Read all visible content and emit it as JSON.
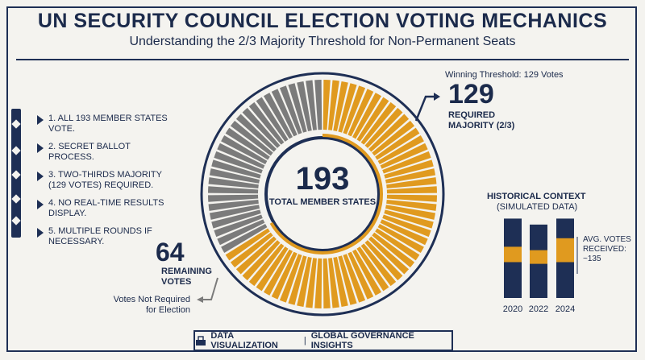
{
  "header": {
    "title": "UN SECURITY COUNCIL ELECTION VOTING MECHANICS",
    "subtitle": "Understanding the 2/3 Majority Threshold for Non-Permanent Seats"
  },
  "steps": [
    "1. All 193 member states vote.",
    "2. Secret ballot process.",
    "3. Two-thirds majority (129 votes) required.",
    "4. No real-time results display.",
    "5. Multiple rounds if necessary."
  ],
  "donut": {
    "total_members": "193",
    "total_label": "TOTAL MEMBER STATES",
    "required_votes": 129,
    "remaining_votes": 64,
    "required_color": "#e09a1f",
    "remaining_color": "#7b7b7b"
  },
  "threshold": {
    "label": "Winning Threshold: 129 Votes",
    "number": "129",
    "caption": "REQUIRED MAJORITY (2/3)"
  },
  "remaining": {
    "number": "64",
    "caption": "REMAINING VOTES",
    "note": "Votes Not Required for Election"
  },
  "history": {
    "title": "HISTORICAL CONTEXT",
    "subtitle": "(SIMULATED DATA)",
    "avg_label": "AVG. VOTES RECEIVED: ~135",
    "years": [
      "2020",
      "2022",
      "2024"
    ],
    "bars": [
      {
        "year": "2020",
        "total": 0.93,
        "band_low": 0.42,
        "band_high": 0.6
      },
      {
        "year": "2022",
        "total": 0.86,
        "band_low": 0.4,
        "band_high": 0.56
      },
      {
        "year": "2024",
        "total": 0.93,
        "band_low": 0.42,
        "band_high": 0.7
      }
    ]
  },
  "footer": {
    "left": "DATA VISUALIZATION",
    "separator": "|",
    "right": "GLOBAL GOVERNANCE INSIGHTS"
  },
  "colors": {
    "navy": "#1e2f55",
    "amber": "#e09a1f",
    "gray": "#7b7b7b",
    "background": "#f4f3ef"
  }
}
